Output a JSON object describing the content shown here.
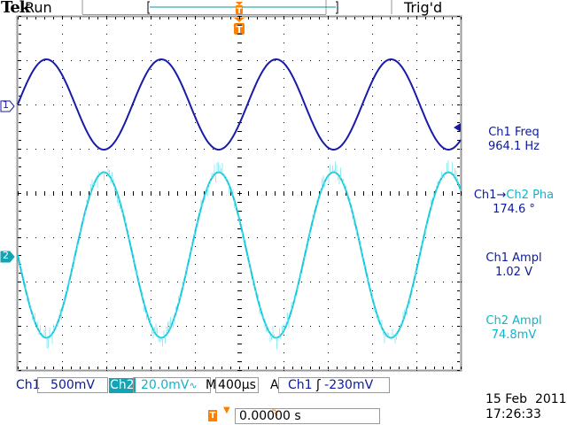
{
  "header": {
    "brand": "Tek",
    "state": "Run",
    "trigger_status": "Trig'd"
  },
  "colors": {
    "ch1": "#0a1a9a",
    "ch2": "#10b4c8",
    "trigger": "#ff7f00",
    "grid": "#000000"
  },
  "channels": [
    {
      "label": "Ch1",
      "marker": "1",
      "scale": "500mV"
    },
    {
      "label": "Ch2",
      "marker": "2",
      "scale": "20.0mV",
      "bandwidth_icon": "bw-limit-icon"
    }
  ],
  "timebase": {
    "label": "M",
    "value": "400µs"
  },
  "trigger": {
    "label": "A",
    "source": "Ch1",
    "slope_icon": "rising-edge-icon",
    "level": "-230mV",
    "marker": "T",
    "position": "0.00000 s"
  },
  "measurements": [
    {
      "title": "Ch1 Freq",
      "value": "964.1 Hz",
      "channel": "ch1"
    },
    {
      "title_a": "Ch1",
      "arrow": "→",
      "title_b": "Ch2 Pha",
      "value": "174.6 °",
      "channel": "mixed"
    },
    {
      "title": "Ch1 Ampl",
      "value": "1.02 V",
      "channel": "ch1"
    },
    {
      "title": "Ch2 Ampl",
      "value": "74.8mV",
      "channel": "ch2"
    }
  ],
  "datetime": {
    "date": "15 Feb  2011",
    "time": "17:26:33"
  },
  "chart_data": {
    "type": "line",
    "x_divisions": 10,
    "y_divisions": 8,
    "series": [
      {
        "name": "Ch1",
        "waveform": "sine",
        "frequency_hz": 964.1,
        "amplitude_pp_v": 1.02,
        "offset_div": 2.0
      },
      {
        "name": "Ch2",
        "waveform": "sine",
        "amplitude_pp_v": 0.0748,
        "offset_div": -1.4,
        "phase_deg": 174.6,
        "noisy": true
      }
    ]
  }
}
